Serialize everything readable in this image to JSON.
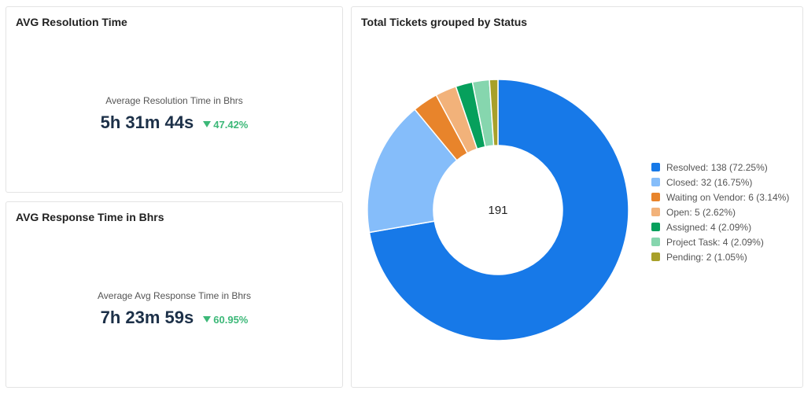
{
  "resolution_card": {
    "title": "AVG Resolution Time",
    "label": "Average Resolution Time in Bhrs",
    "value": "5h 31m 44s",
    "change": "47.42%",
    "change_color": "#3cb878",
    "change_icon": "triangle-down-icon"
  },
  "response_card": {
    "title": "AVG Response Time in Bhrs",
    "label": "Average Avg Response Time in Bhrs",
    "value": "7h 23m 59s",
    "change": "60.95%",
    "change_color": "#3cb878",
    "change_icon": "triangle-down-icon"
  },
  "chart_data": {
    "type": "pie",
    "title": "Total Tickets grouped by Status",
    "center_label": "191",
    "legend_position": "right",
    "slices": [
      {
        "label": "Resolved: 138 (72.25%)",
        "name": "Resolved",
        "value": 138,
        "color": "#1779e8"
      },
      {
        "label": "Closed: 32 (16.75%)",
        "name": "Closed",
        "value": 32,
        "color": "#85bdfa"
      },
      {
        "label": "Waiting on Vendor: 6 (3.14%)",
        "name": "Waiting on Vendor",
        "value": 6,
        "color": "#e8842b"
      },
      {
        "label": "Open: 5 (2.62%)",
        "name": "Open",
        "value": 5,
        "color": "#f2b27a"
      },
      {
        "label": "Assigned: 4 (2.09%)",
        "name": "Assigned",
        "value": 4,
        "color": "#06a05c"
      },
      {
        "label": "Project Task: 4 (2.09%)",
        "name": "Project Task",
        "value": 4,
        "color": "#86d6ae"
      },
      {
        "label": "Pending: 2 (1.05%)",
        "name": "Pending",
        "value": 2,
        "color": "#a8a02a"
      }
    ]
  }
}
